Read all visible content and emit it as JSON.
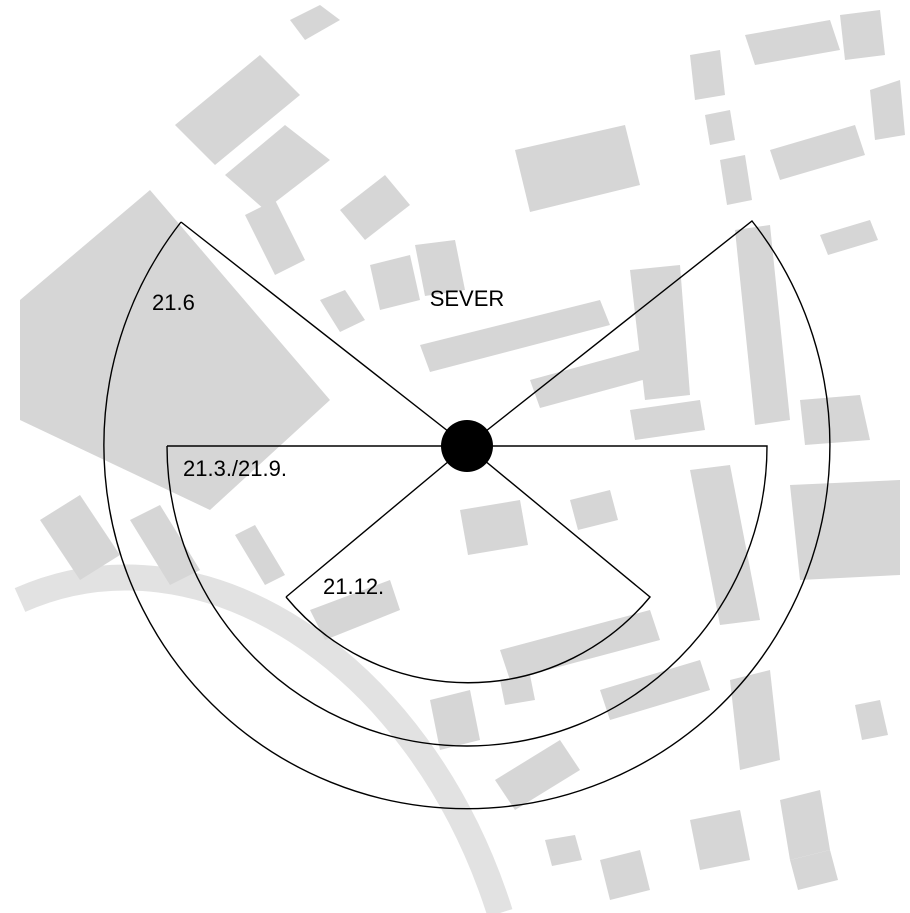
{
  "north_label": "SEVER",
  "sectors": [
    {
      "label": "21.6"
    },
    {
      "label": "21.3./21.9."
    },
    {
      "label": "21.12."
    }
  ]
}
